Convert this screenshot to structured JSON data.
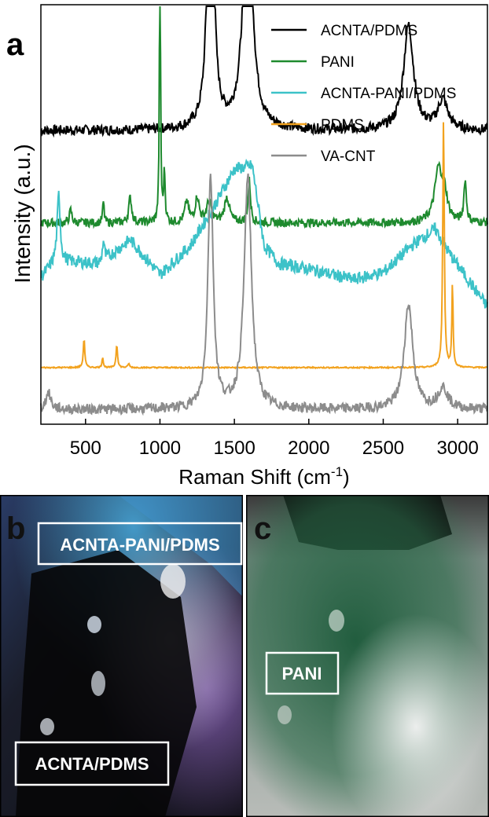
{
  "panel_a": {
    "letter": "a",
    "chart_data": {
      "type": "line",
      "xlabel": "Raman Shift (cm",
      "xlabel_sup": "-1",
      "xlabel_end": ")",
      "ylabel": "Intensity (a.u.)",
      "xlim": [
        200,
        3200
      ],
      "xticks": [
        500,
        1000,
        1500,
        2000,
        2500,
        3000
      ],
      "yticks": "none",
      "legend_position": "top-right",
      "series": [
        {
          "name": "ACNTA/PDMS",
          "color": "#000000",
          "baseline": 0.7,
          "noise": 0.012,
          "tilt": 0,
          "points": [
            [
              200,
              0.0
            ],
            [
              3200,
              0.0
            ]
          ],
          "peaks": [
            [
              1340,
              0.82,
              22
            ],
            [
              1590,
              0.6,
              35
            ],
            [
              2670,
              0.25,
              40
            ],
            [
              2900,
              0.07,
              40
            ]
          ]
        },
        {
          "name": "PANI",
          "color": "#1e8a2e",
          "baseline": 0.48,
          "noise": 0.01,
          "tilt": 0,
          "points": [
            [
              200,
              0.0
            ],
            [
              3200,
              0.0
            ]
          ],
          "peaks": [
            [
              1000,
              0.8,
              4
            ],
            [
              1030,
              0.12,
              6
            ],
            [
              400,
              0.03,
              10
            ],
            [
              620,
              0.05,
              6
            ],
            [
              800,
              0.06,
              12
            ],
            [
              1180,
              0.05,
              15
            ],
            [
              1250,
              0.06,
              15
            ],
            [
              1330,
              0.05,
              20
            ],
            [
              1450,
              0.06,
              20
            ],
            [
              1600,
              0.1,
              10
            ],
            [
              2870,
              0.12,
              30
            ],
            [
              2910,
              0.06,
              25
            ],
            [
              3050,
              0.1,
              10
            ]
          ]
        },
        {
          "name": "ACNTA-PANI/PDMS",
          "color": "#3cc2c8",
          "baseline": 0.35,
          "noise": 0.015,
          "tilt": -0.05,
          "points": [
            [
              200,
              0.0
            ],
            [
              300,
              0.04
            ],
            [
              600,
              0.04
            ],
            [
              800,
              0.1
            ],
            [
              1000,
              0.02
            ],
            [
              1200,
              0.09
            ],
            [
              1350,
              0.18
            ],
            [
              1500,
              0.28
            ],
            [
              1620,
              0.29
            ],
            [
              1700,
              0.1
            ],
            [
              1800,
              0.06
            ],
            [
              2000,
              0.05
            ],
            [
              2300,
              0.03
            ],
            [
              2500,
              0.05
            ],
            [
              2700,
              0.12
            ],
            [
              2850,
              0.16
            ],
            [
              2950,
              0.1
            ],
            [
              3200,
              -0.02
            ]
          ],
          "peaks": [
            [
              320,
              0.16,
              12
            ],
            [
              620,
              0.05,
              8
            ]
          ]
        },
        {
          "name": "PDMS",
          "color": "#f2a21e",
          "baseline": 0.135,
          "noise": 0.0015,
          "tilt": 0,
          "points": [
            [
              200,
              0.0
            ],
            [
              3200,
              0.0
            ]
          ],
          "peaks": [
            [
              490,
              0.07,
              6
            ],
            [
              615,
              0.025,
              5
            ],
            [
              710,
              0.055,
              6
            ],
            [
              790,
              0.01,
              6
            ],
            [
              2905,
              0.6,
              6
            ],
            [
              2965,
              0.2,
              5
            ]
          ]
        },
        {
          "name": "VA-CNT",
          "color": "#8c8c8c",
          "baseline": 0.035,
          "noise": 0.012,
          "tilt": 0,
          "points": [
            [
              200,
              0.0
            ],
            [
              3200,
              0.0
            ]
          ],
          "peaks": [
            [
              250,
              0.04,
              20
            ],
            [
              1340,
              0.55,
              22
            ],
            [
              1590,
              0.55,
              30
            ],
            [
              2670,
              0.25,
              35
            ],
            [
              2900,
              0.05,
              40
            ]
          ]
        }
      ]
    }
  },
  "panel_b": {
    "letter": "b",
    "label_top": "ACNTA-PANI/PDMS",
    "label_bottom": "ACNTA/PDMS"
  },
  "panel_c": {
    "letter": "c",
    "label": "PANI"
  }
}
